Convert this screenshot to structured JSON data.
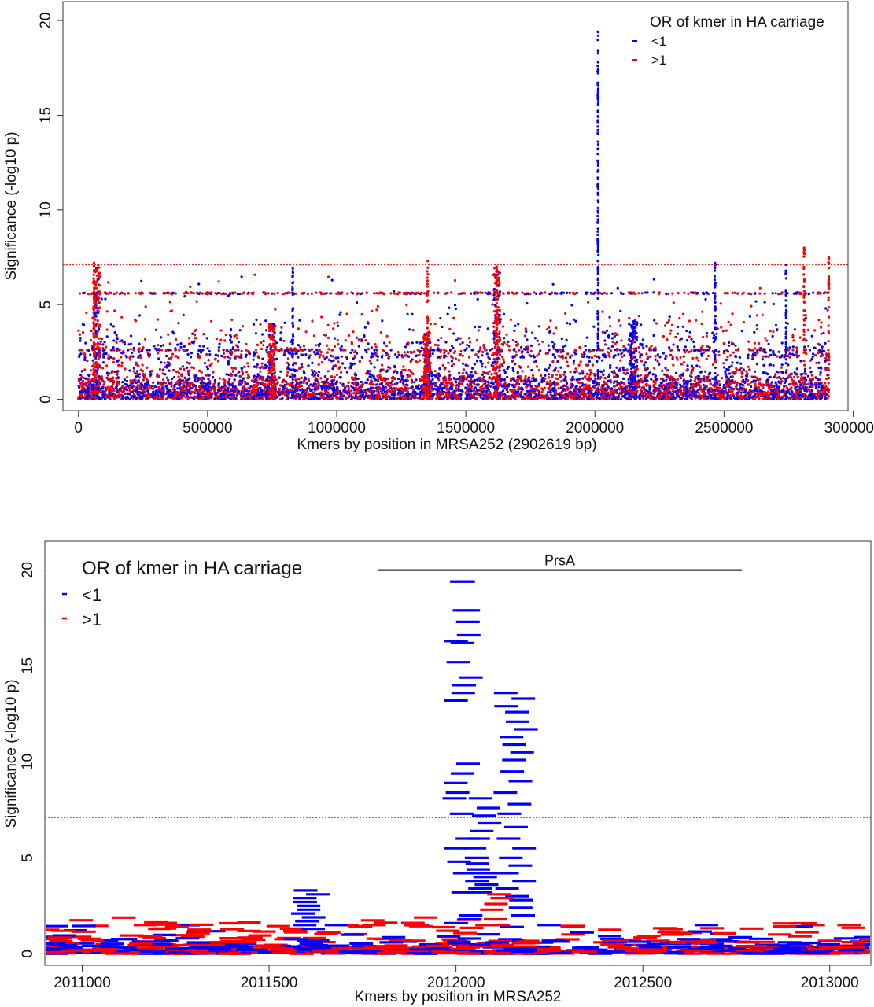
{
  "colors": {
    "below_one": "#0000ff",
    "above_one": "#ff0000",
    "threshold": "#ff0000",
    "axis": "#333333",
    "gene_bar": "#000000"
  },
  "chart_data": [
    {
      "type": "scatter",
      "title": "",
      "xlabel": "Kmers by position in MRSA252 (2902619 bp)",
      "ylabel": "Significance (-log10 p)",
      "xlim": [
        -60000,
        2980000
      ],
      "ylim": [
        -0.6,
        21
      ],
      "xticks": [
        0,
        500000,
        1000000,
        1500000,
        2000000,
        2500000,
        3000000
      ],
      "xtick_labels": [
        "0",
        "500000",
        "1000000",
        "1500000",
        "2000000",
        "2500000",
        "3000000"
      ],
      "yticks": [
        0,
        5,
        10,
        15,
        20
      ],
      "threshold": 7.1,
      "genome_length": 2902619,
      "legend": {
        "title": "OR of kmer in HA carriage",
        "position": "top-right",
        "entries": [
          "<1",
          ">1"
        ]
      },
      "series": [
        {
          "name": "<1",
          "color": "#0000ff"
        },
        {
          "name": ">1",
          "color": "#ff0000"
        }
      ],
      "peaks": [
        {
          "x": 2011800,
          "top": 19.4,
          "series": "<1"
        },
        {
          "x": 2740000,
          "top": 7.1,
          "series": "<1"
        },
        {
          "x": 2465000,
          "top": 7.2,
          "series": "<1"
        },
        {
          "x": 2810000,
          "top": 8.0,
          "series": ">1"
        },
        {
          "x": 2905000,
          "top": 7.5,
          "series": ">1"
        },
        {
          "x": 60000,
          "top": 7.2,
          "series": ">1"
        },
        {
          "x": 1352000,
          "top": 7.3,
          "series": ">1"
        },
        {
          "x": 1620000,
          "top": 7.0,
          "series": ">1"
        },
        {
          "x": 830000,
          "top": 6.9,
          "series": "<1"
        }
      ],
      "plateau_level": 5.6
    },
    {
      "type": "scatter",
      "title": "",
      "xlabel": "Kmers by position in MRSA252",
      "ylabel": "Significance (-log10 p)",
      "xlim": [
        2010900,
        2013110
      ],
      "ylim": [
        -0.6,
        21.5
      ],
      "xticks": [
        2011000,
        2011500,
        2012000,
        2012500,
        2013000
      ],
      "xtick_labels": [
        "2011000",
        "2011500",
        "2012000",
        "2012500",
        "2013000"
      ],
      "yticks": [
        0,
        5,
        10,
        15,
        20
      ],
      "threshold": 7.1,
      "gene_annotation": {
        "label": "PrsA",
        "start": 2011790,
        "end": 2012765,
        "y": 20.0
      },
      "legend": {
        "title": "OR of kmer in HA carriage",
        "position": "top-left",
        "entries": [
          "<1",
          ">1"
        ]
      },
      "series": [
        {
          "name": "<1",
          "color": "#0000ff"
        },
        {
          "name": ">1",
          "color": "#ff0000"
        }
      ],
      "clusters": [
        {
          "series": "<1",
          "x_center": 2012020,
          "x_spread": 25,
          "values": [
            19.4,
            19.4,
            17.9,
            17.9,
            17.3,
            16.6,
            16.3,
            16.2,
            15.2,
            14.4,
            14.0,
            13.6,
            13.2,
            9.9,
            9.4,
            8.9,
            8.4,
            8.1,
            7.3,
            6.0,
            5.5,
            4.8,
            4.2,
            3.2,
            2.0,
            1.8,
            1.6
          ]
        },
        {
          "series": "<1",
          "x_center": 2012070,
          "x_spread": 25,
          "values": [
            8.1,
            7.6,
            7.2,
            6.8,
            6.4,
            6.0,
            5.5,
            5.0,
            4.7,
            4.4,
            4.2,
            4.0,
            3.8,
            3.6,
            3.4,
            3.2
          ]
        },
        {
          "series": "<1",
          "x_center": 2012160,
          "x_spread": 28,
          "values": [
            13.6,
            13.3,
            12.9,
            12.6,
            12.1,
            11.7,
            11.3,
            10.9,
            10.5,
            10.1,
            9.5,
            9.0,
            8.4,
            7.8,
            7.3,
            6.6,
            6.0,
            5.5,
            5.0,
            4.6,
            4.2,
            3.8,
            3.4,
            3.0,
            2.8,
            2.4,
            2.0,
            1.4
          ]
        },
        {
          "series": "<1",
          "x_center": 2011610,
          "x_spread": 22,
          "values": [
            3.3,
            3.1,
            2.9,
            2.7,
            2.5,
            2.3,
            2.1,
            1.9,
            1.7,
            1.5,
            1.3
          ]
        },
        {
          "series": ">1",
          "x_center": 2012110,
          "x_spread": 15,
          "values": [
            3.1,
            2.9,
            2.6,
            2.3,
            1.8,
            1.5
          ]
        }
      ]
    }
  ]
}
